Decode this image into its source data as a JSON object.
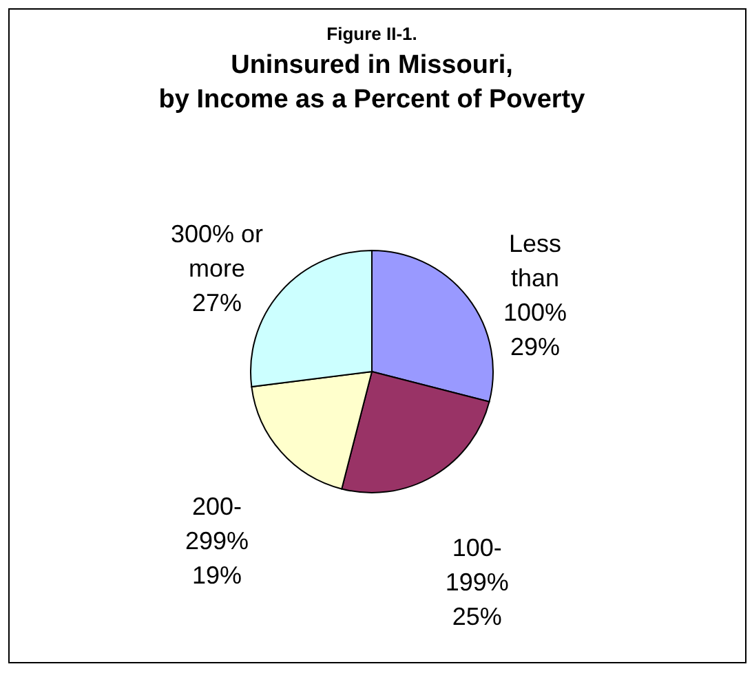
{
  "chart_data": {
    "type": "pie",
    "title": "Figure II-1.",
    "subtitle": "Uninsured in Missouri,\nby Income as a Percent of Poverty",
    "categories": [
      "Less than 100%",
      "100-199%",
      "200-299%",
      "300% or more"
    ],
    "values": [
      29,
      25,
      19,
      27
    ],
    "value_labels": [
      "29%",
      "25%",
      "19%",
      "27%"
    ],
    "colors": [
      "#9999ff",
      "#993366",
      "#ffffcc",
      "#ccffff"
    ]
  }
}
